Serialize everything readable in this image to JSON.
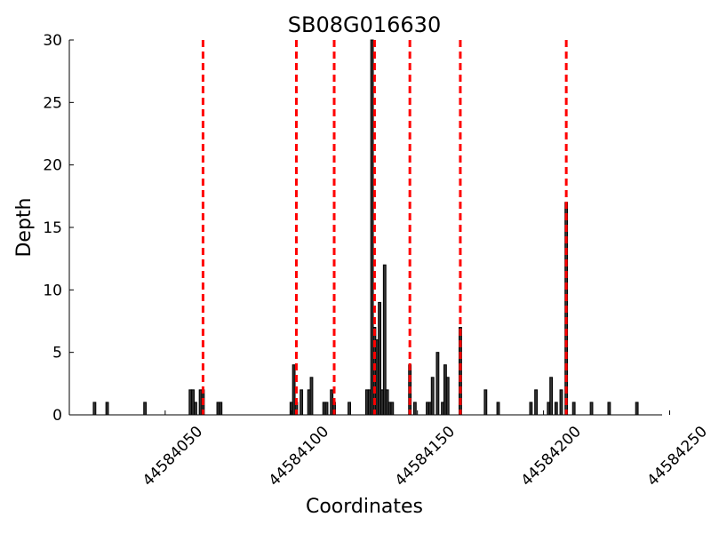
{
  "chart_data": {
    "type": "bar",
    "title": "SB08G016630",
    "x_label": "Coordinates",
    "y_label": "Depth",
    "x": [
      44584022,
      44584027,
      44584042,
      44584060,
      44584061,
      44584062,
      44584064,
      44584065,
      44584071,
      44584072,
      44584100,
      44584101,
      44584102,
      44584104,
      44584107,
      44584108,
      44584113,
      44584114,
      44584116,
      44584117,
      44584123,
      44584130,
      44584131,
      44584132,
      44584133,
      44584134,
      44584135,
      44584136,
      44584137,
      44584138,
      44584139,
      44584140,
      44584147,
      44584149,
      44584154,
      44584155,
      44584156,
      44584158,
      44584160,
      44584161,
      44584162,
      44584167,
      44584177,
      44584182,
      44584195,
      44584197,
      44584202,
      44584203,
      44584205,
      44584207,
      44584209,
      44584212,
      44584219,
      44584226,
      44584237
    ],
    "values": [
      1,
      1,
      1,
      2,
      2,
      1,
      2,
      2,
      1,
      1,
      1,
      4,
      1,
      2,
      2,
      3,
      1,
      1,
      2,
      1,
      1,
      2,
      2,
      30,
      7,
      6,
      9,
      2,
      12,
      2,
      1,
      1,
      4,
      1,
      1,
      1,
      3,
      5,
      1,
      4,
      3,
      7,
      2,
      1,
      1,
      2,
      1,
      3,
      1,
      2,
      17,
      1,
      1,
      1,
      1
    ],
    "color": "#333333",
    "edge_color": "#000000",
    "vlines": [
      44584065,
      44584102,
      44584117,
      44584133,
      44584147,
      44584167,
      44584209
    ],
    "vline_color": "#ff0000",
    "xlim": [
      44584012,
      44584247
    ],
    "xticks": [
      44584050,
      44584100,
      44584150,
      44584200,
      44584250
    ],
    "ylim": [
      0,
      30
    ],
    "yticks": [
      0,
      5,
      10,
      15,
      20,
      25,
      30
    ]
  }
}
